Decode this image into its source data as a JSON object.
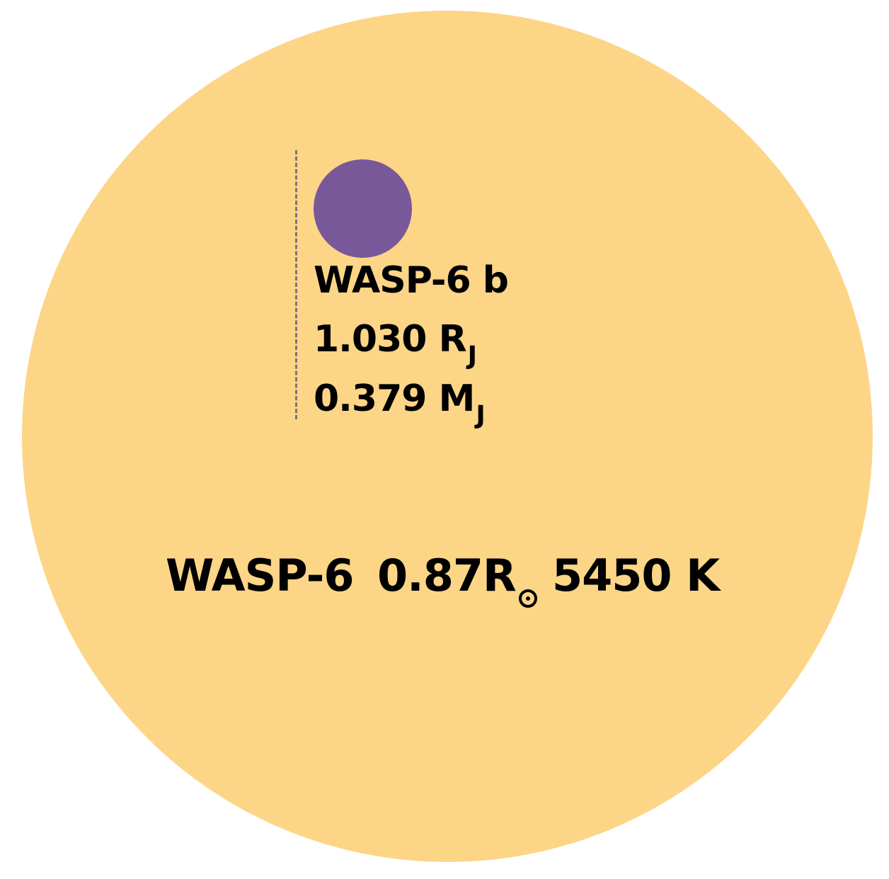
{
  "colors": {
    "star": "#fdd587",
    "planet": "#785899",
    "orbit_line": "#777777",
    "text": "#000000"
  },
  "planet": {
    "name": "WASP-6 b",
    "radius_value": "1.030 R",
    "radius_unit_sub": "J",
    "mass_value": "0.379 M",
    "mass_unit_sub": "J"
  },
  "star": {
    "name": "WASP-6",
    "radius_value": "0.87R",
    "radius_unit_symbol": "sun-symbol-icon",
    "temperature": "5450 K"
  }
}
